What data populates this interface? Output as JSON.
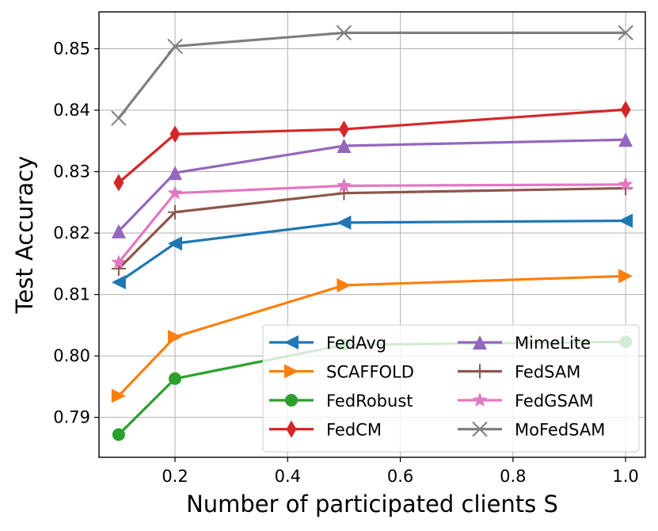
{
  "chart_data": {
    "type": "line",
    "title": "",
    "xlabel": "Number of participated clients S",
    "ylabel": "Test Accuracy",
    "xlim": [
      0.065,
      1.035
    ],
    "ylim": [
      0.7835,
      0.856
    ],
    "xticks": [
      0.2,
      0.4,
      0.6,
      0.8,
      1.0
    ],
    "xtick_labels": [
      "0.2",
      "0.4",
      "0.6",
      "0.8",
      "1.0"
    ],
    "yticks": [
      0.79,
      0.8,
      0.81,
      0.82,
      0.83,
      0.84,
      0.85
    ],
    "ytick_labels": [
      "0.79",
      "0.80",
      "0.81",
      "0.82",
      "0.83",
      "0.84",
      "0.85"
    ],
    "grid": true,
    "legend_position": "bottom-right",
    "x": [
      0.1,
      0.2,
      0.5,
      1.0
    ],
    "series": [
      {
        "name": "FedAvg",
        "color": "#1f77b4",
        "marker": "triangle-left",
        "values": [
          0.812,
          0.8183,
          0.8217,
          0.822
        ]
      },
      {
        "name": "SCAFFOLD",
        "color": "#ff7f0e",
        "marker": "triangle-right",
        "values": [
          0.7935,
          0.8031,
          0.8115,
          0.813
        ]
      },
      {
        "name": "FedRobust",
        "color": "#2ca02c",
        "marker": "circle",
        "values": [
          0.7872,
          0.7963,
          0.8018,
          0.8023
        ]
      },
      {
        "name": "FedCM",
        "color": "#d62728",
        "marker": "thin-diamond",
        "values": [
          0.8282,
          0.8361,
          0.8369,
          0.8401
        ]
      },
      {
        "name": "MimeLite",
        "color": "#9467bd",
        "marker": "triangle-up",
        "values": [
          0.8203,
          0.8298,
          0.8342,
          0.8352
        ]
      },
      {
        "name": "FedSAM",
        "color": "#8c564b",
        "marker": "plus",
        "values": [
          0.8142,
          0.8234,
          0.8265,
          0.8273
        ]
      },
      {
        "name": "FedGSAM",
        "color": "#e377c2",
        "marker": "star",
        "values": [
          0.8152,
          0.8265,
          0.8277,
          0.8279
        ]
      },
      {
        "name": "MoFedSAM",
        "color": "#7f7f7f",
        "marker": "x",
        "values": [
          0.8387,
          0.8504,
          0.8526,
          0.8526
        ]
      }
    ]
  }
}
